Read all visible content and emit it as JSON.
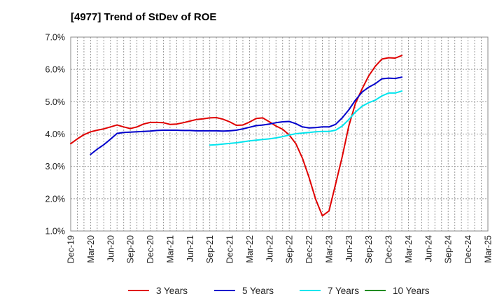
{
  "chart_data": {
    "type": "line",
    "title": "[4977]  Trend of StDev of ROE",
    "xlabel": "",
    "ylabel": "",
    "ylim": [
      1.0,
      7.0
    ],
    "y_ticks": [
      "1.0%",
      "2.0%",
      "3.0%",
      "4.0%",
      "5.0%",
      "6.0%",
      "7.0%"
    ],
    "y_tick_values": [
      1,
      2,
      3,
      4,
      5,
      6,
      7
    ],
    "x_ticks": [
      "Dec-19",
      "Mar-20",
      "Jun-20",
      "Sep-20",
      "Dec-20",
      "Mar-21",
      "Jun-21",
      "Sep-21",
      "Dec-21",
      "Mar-22",
      "Jun-22",
      "Sep-22",
      "Dec-22",
      "Mar-23",
      "Jun-23",
      "Sep-23",
      "Dec-23",
      "Mar-24",
      "Jun-24",
      "Sep-24",
      "Dec-24",
      "Mar-25"
    ],
    "grid": true,
    "legend_position": "bottom",
    "series": [
      {
        "name": "3 Years",
        "color": "#e00000",
        "values": [
          3.7,
          3.85,
          3.98,
          4.07,
          4.12,
          4.16,
          4.22,
          4.28,
          4.22,
          4.17,
          4.22,
          4.31,
          4.36,
          4.36,
          4.35,
          4.3,
          4.31,
          4.35,
          4.4,
          4.45,
          4.47,
          4.5,
          4.51,
          4.46,
          4.38,
          4.27,
          4.28,
          4.37,
          4.48,
          4.5,
          4.38,
          4.25,
          4.15,
          3.97,
          3.7,
          3.25,
          2.65,
          1.98,
          1.47,
          1.62,
          2.45,
          3.3,
          4.25,
          4.95,
          5.4,
          5.8,
          6.1,
          6.32,
          6.36,
          6.35,
          6.43
        ]
      },
      {
        "name": "5 Years",
        "color": "#0000cc",
        "values": [
          null,
          null,
          null,
          3.37,
          3.53,
          3.67,
          3.84,
          4.02,
          4.05,
          4.06,
          4.07,
          4.08,
          4.09,
          4.11,
          4.12,
          4.12,
          4.12,
          4.11,
          4.11,
          4.1,
          4.1,
          4.1,
          4.1,
          4.09,
          4.1,
          4.12,
          4.16,
          4.21,
          4.26,
          4.28,
          4.31,
          4.35,
          4.38,
          4.39,
          4.32,
          4.22,
          4.19,
          4.2,
          4.22,
          4.22,
          4.3,
          4.5,
          4.75,
          5.05,
          5.3,
          5.45,
          5.56,
          5.71,
          5.73,
          5.72,
          5.76
        ]
      },
      {
        "name": "7 Years",
        "color": "#00e5ee",
        "values": [
          null,
          null,
          null,
          null,
          null,
          null,
          null,
          null,
          null,
          null,
          null,
          null,
          null,
          null,
          null,
          null,
          null,
          null,
          null,
          null,
          null,
          3.66,
          3.67,
          3.69,
          3.71,
          3.73,
          3.76,
          3.79,
          3.81,
          3.83,
          3.85,
          3.88,
          3.92,
          3.97,
          4.01,
          4.03,
          4.05,
          4.07,
          4.08,
          4.08,
          4.12,
          4.25,
          4.45,
          4.68,
          4.86,
          4.97,
          5.05,
          5.18,
          5.27,
          5.27,
          5.33
        ]
      },
      {
        "name": "10 Years",
        "color": "#228b22",
        "values": []
      }
    ]
  }
}
